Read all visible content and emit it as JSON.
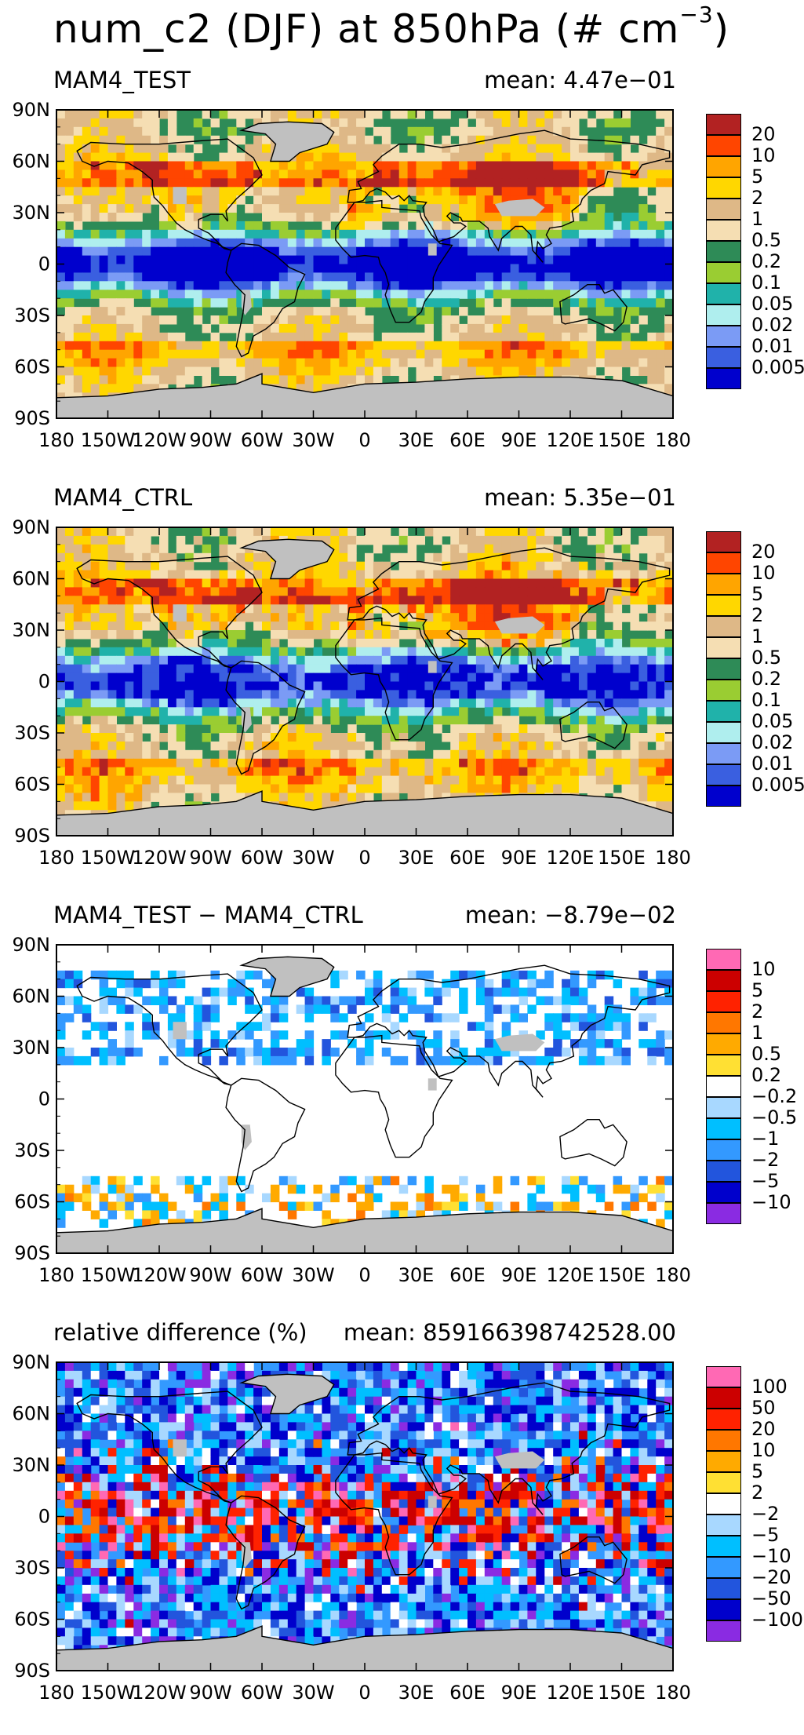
{
  "title": {
    "main": "num_c2 (DJF) at 850hPa (# cm",
    "exponent": "−3",
    "close": ")"
  },
  "lat_ticks": [
    "90N",
    "60N",
    "30N",
    "0",
    "30S",
    "60S",
    "90S"
  ],
  "lon_ticks": [
    "180",
    "150W",
    "120W",
    "90W",
    "60W",
    "30W",
    "0",
    "30E",
    "60E",
    "90E",
    "120E",
    "150E",
    "180"
  ],
  "panels": [
    {
      "name": "MAM4_TEST",
      "left_label": "MAM4_TEST",
      "mean_label": "mean:  4.47e−01",
      "legend": [
        "20",
        "10",
        "5",
        "2",
        "1",
        "0.5",
        "0.2",
        "0.1",
        "0.05",
        "0.02",
        "0.01",
        "0.005"
      ],
      "colors": [
        "#b22222",
        "#ff4500",
        "#ffa500",
        "#ffd700",
        "#deb887",
        "#f5deb3",
        "#2e8b57",
        "#9acd32",
        "#20b2aa",
        "#afeeee",
        "#7b9bf5",
        "#3a5fe0",
        "#0000cd"
      ]
    },
    {
      "name": "MAM4_CTRL",
      "left_label": "MAM4_CTRL",
      "mean_label": "mean:  5.35e−01",
      "legend": [
        "20",
        "10",
        "5",
        "2",
        "1",
        "0.5",
        "0.2",
        "0.1",
        "0.05",
        "0.02",
        "0.01",
        "0.005"
      ],
      "colors": [
        "#b22222",
        "#ff4500",
        "#ffa500",
        "#ffd700",
        "#deb887",
        "#f5deb3",
        "#2e8b57",
        "#9acd32",
        "#20b2aa",
        "#afeeee",
        "#7b9bf5",
        "#3a5fe0",
        "#0000cd"
      ]
    },
    {
      "name": "difference",
      "left_label": "MAM4_TEST − MAM4_CTRL",
      "mean_label": "mean:  −8.79e−02",
      "legend": [
        "10",
        "5",
        "2",
        "1",
        "0.5",
        "0.2",
        "−0.2",
        "−0.5",
        "−1",
        "−2",
        "−5",
        "−10"
      ],
      "colors": [
        "#ff69b4",
        "#cc0000",
        "#ff2200",
        "#ff7700",
        "#ffaa00",
        "#ffe033",
        "#ffffff",
        "#a8d8ff",
        "#00bfff",
        "#3399ff",
        "#2255dd",
        "#0000cc",
        "#8a2be2"
      ]
    },
    {
      "name": "relative-difference",
      "left_label": "relative difference (%)",
      "mean_label": "mean:  859166398742528.00",
      "legend": [
        "100",
        "50",
        "20",
        "10",
        "5",
        "2",
        "−2",
        "−5",
        "−10",
        "−20",
        "−50",
        "−100"
      ],
      "colors": [
        "#ff69b4",
        "#cc0000",
        "#ff2200",
        "#ff7700",
        "#ffaa00",
        "#ffe033",
        "#ffffff",
        "#a8d8ff",
        "#00bfff",
        "#3399ff",
        "#2255dd",
        "#0000cc",
        "#8a2be2"
      ]
    }
  ],
  "land_color": "#c0c0c0"
}
